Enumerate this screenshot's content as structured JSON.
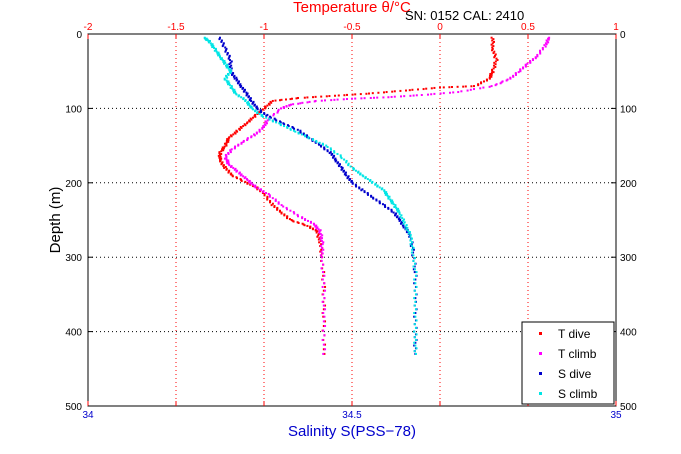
{
  "chart_data": {
    "type": "scatter",
    "title": "",
    "annotation": "SN: 0152  CAL: 2410",
    "xlabel_top": "Temperature θ/°C",
    "xlabel_bottom": "Salinity S(PSS−78)",
    "ylabel": "Depth (m)",
    "x_top_lim": [
      -2,
      1
    ],
    "x_top_ticks": [
      "-2",
      "-1.5",
      "-1",
      "-0.5",
      "0",
      "0.5",
      "1"
    ],
    "x_bottom_lim": [
      34,
      35
    ],
    "x_bottom_ticks": [
      "34",
      "34.5",
      "35"
    ],
    "ylim": [
      0,
      500
    ],
    "y_ticks": [
      "0",
      "100",
      "200",
      "300",
      "400",
      "500"
    ],
    "y_inverted": true,
    "grid": true,
    "legend_position": "bottom-right",
    "colors": {
      "temperature_axis": "#ff0000",
      "salinity_axis": "#0000cc",
      "y_axis": "#000000"
    },
    "series": [
      {
        "name": "T dive",
        "axis": "top",
        "color": "#ff0000",
        "points": [
          [
            0.3,
            5
          ],
          [
            0.3,
            20
          ],
          [
            0.32,
            35
          ],
          [
            0.3,
            50
          ],
          [
            0.28,
            60
          ],
          [
            0.2,
            70
          ],
          [
            0.0,
            72
          ],
          [
            -0.2,
            76
          ],
          [
            -0.4,
            80
          ],
          [
            -0.6,
            83
          ],
          [
            -0.8,
            86
          ],
          [
            -0.95,
            90
          ],
          [
            -1.0,
            100
          ],
          [
            -1.05,
            110
          ],
          [
            -1.1,
            120
          ],
          [
            -1.15,
            130
          ],
          [
            -1.2,
            140
          ],
          [
            -1.22,
            150
          ],
          [
            -1.25,
            160
          ],
          [
            -1.25,
            170
          ],
          [
            -1.22,
            180
          ],
          [
            -1.18,
            190
          ],
          [
            -1.1,
            200
          ],
          [
            -1.05,
            205
          ],
          [
            -1.0,
            215
          ],
          [
            -0.95,
            230
          ],
          [
            -0.9,
            240
          ],
          [
            -0.85,
            250
          ],
          [
            -0.75,
            258
          ],
          [
            -0.7,
            265
          ],
          [
            -0.68,
            280
          ],
          [
            -0.67,
            300
          ],
          [
            -0.66,
            340
          ],
          [
            -0.66,
            380
          ],
          [
            -0.66,
            430
          ]
        ]
      },
      {
        "name": "T climb",
        "axis": "top",
        "color": "#ff00ff",
        "points": [
          [
            -0.66,
            430
          ],
          [
            -0.66,
            380
          ],
          [
            -0.66,
            340
          ],
          [
            -0.67,
            300
          ],
          [
            -0.67,
            280
          ],
          [
            -0.68,
            265
          ],
          [
            -0.72,
            255
          ],
          [
            -0.8,
            245
          ],
          [
            -0.9,
            230
          ],
          [
            -0.98,
            215
          ],
          [
            -1.05,
            205
          ],
          [
            -1.1,
            195
          ],
          [
            -1.15,
            185
          ],
          [
            -1.2,
            175
          ],
          [
            -1.22,
            165
          ],
          [
            -1.18,
            155
          ],
          [
            -1.12,
            145
          ],
          [
            -1.05,
            135
          ],
          [
            -1.0,
            125
          ],
          [
            -0.98,
            115
          ],
          [
            -0.9,
            100
          ],
          [
            -0.85,
            95
          ],
          [
            -0.7,
            90
          ],
          [
            -0.5,
            87
          ],
          [
            -0.3,
            85
          ],
          [
            -0.1,
            82
          ],
          [
            0.1,
            78
          ],
          [
            0.3,
            70
          ],
          [
            0.4,
            60
          ],
          [
            0.45,
            50
          ],
          [
            0.5,
            40
          ],
          [
            0.55,
            30
          ],
          [
            0.6,
            15
          ],
          [
            0.62,
            5
          ]
        ]
      },
      {
        "name": "S dive",
        "axis": "bottom",
        "color": "#0000cc",
        "points": [
          [
            34.25,
            5
          ],
          [
            34.26,
            20
          ],
          [
            34.27,
            35
          ],
          [
            34.27,
            50
          ],
          [
            34.28,
            60
          ],
          [
            34.29,
            70
          ],
          [
            34.3,
            80
          ],
          [
            34.31,
            90
          ],
          [
            34.32,
            100
          ],
          [
            34.34,
            110
          ],
          [
            34.37,
            120
          ],
          [
            34.4,
            130
          ],
          [
            34.42,
            140
          ],
          [
            34.44,
            150
          ],
          [
            34.46,
            160
          ],
          [
            34.47,
            170
          ],
          [
            34.48,
            180
          ],
          [
            34.49,
            190
          ],
          [
            34.5,
            200
          ],
          [
            34.52,
            210
          ],
          [
            34.54,
            220
          ],
          [
            34.56,
            230
          ],
          [
            34.58,
            240
          ],
          [
            34.59,
            250
          ],
          [
            34.6,
            260
          ],
          [
            34.61,
            270
          ],
          [
            34.615,
            290
          ],
          [
            34.62,
            320
          ],
          [
            34.62,
            360
          ],
          [
            34.62,
            400
          ],
          [
            34.62,
            430
          ]
        ]
      },
      {
        "name": "S climb",
        "axis": "bottom",
        "color": "#00e5e5",
        "points": [
          [
            34.62,
            430
          ],
          [
            34.62,
            400
          ],
          [
            34.62,
            360
          ],
          [
            34.62,
            320
          ],
          [
            34.615,
            290
          ],
          [
            34.61,
            270
          ],
          [
            34.6,
            255
          ],
          [
            34.59,
            240
          ],
          [
            34.58,
            230
          ],
          [
            34.57,
            220
          ],
          [
            34.56,
            210
          ],
          [
            34.54,
            200
          ],
          [
            34.52,
            190
          ],
          [
            34.5,
            180
          ],
          [
            34.48,
            165
          ],
          [
            34.45,
            150
          ],
          [
            34.42,
            140
          ],
          [
            34.39,
            130
          ],
          [
            34.36,
            120
          ],
          [
            34.33,
            110
          ],
          [
            34.31,
            100
          ],
          [
            34.3,
            90
          ],
          [
            34.28,
            80
          ],
          [
            34.27,
            70
          ],
          [
            34.26,
            60
          ],
          [
            34.27,
            50
          ],
          [
            34.26,
            40
          ],
          [
            34.25,
            30
          ],
          [
            34.24,
            20
          ],
          [
            34.23,
            10
          ],
          [
            34.22,
            5
          ]
        ]
      }
    ]
  }
}
